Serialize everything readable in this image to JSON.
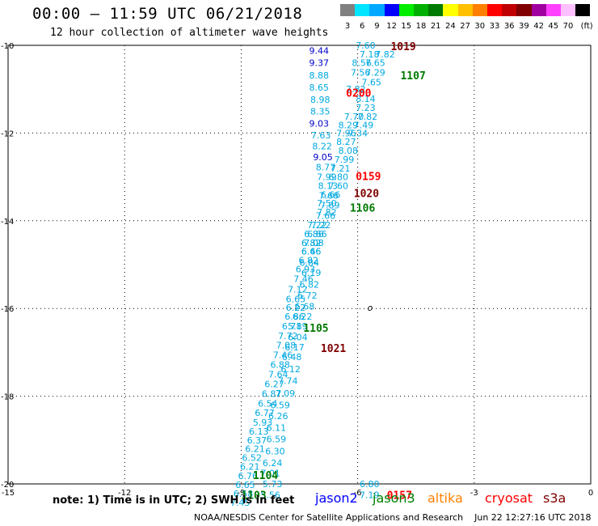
{
  "header": {
    "title": "00:00 – 11:59 UTC 06/21/2018",
    "subtitle": "12 hour collection of altimeter wave heights"
  },
  "color_scale": {
    "unit_label": "(ft)",
    "items": [
      {
        "label": "3",
        "color": "#808080"
      },
      {
        "label": "6",
        "color": "#00e5ff"
      },
      {
        "label": "9",
        "color": "#00a8ff"
      },
      {
        "label": "12",
        "color": "#0000ff"
      },
      {
        "label": "15",
        "color": "#00ee00"
      },
      {
        "label": "18",
        "color": "#00b000"
      },
      {
        "label": "21",
        "color": "#007a00"
      },
      {
        "label": "24",
        "color": "#ffff00"
      },
      {
        "label": "27",
        "color": "#ffc000"
      },
      {
        "label": "30",
        "color": "#ff8000"
      },
      {
        "label": "33",
        "color": "#ff0000"
      },
      {
        "label": "36",
        "color": "#c00000"
      },
      {
        "label": "39",
        "color": "#800000"
      },
      {
        "label": "42",
        "color": "#a000a0"
      },
      {
        "label": "45",
        "color": "#ff40ff"
      },
      {
        "label": "70",
        "color": "#ffc0ff"
      },
      {
        "label": "",
        "color": "#000000"
      }
    ]
  },
  "map": {
    "lon_range": [
      -15,
      0
    ],
    "lat_range": [
      -20,
      -10
    ],
    "x_ticks": [
      {
        "value": -15,
        "label": "-15"
      },
      {
        "value": -12,
        "label": "-12"
      },
      {
        "value": -9,
        "label": "-9"
      },
      {
        "value": -6,
        "label": "-6"
      },
      {
        "value": -3,
        "label": "-3"
      },
      {
        "value": 0,
        "label": "0"
      }
    ],
    "y_ticks": [
      {
        "value": -10,
        "label": "-10"
      },
      {
        "value": -12,
        "label": "-12"
      },
      {
        "value": -14,
        "label": "-14"
      },
      {
        "value": -16,
        "label": "-16"
      },
      {
        "value": -18,
        "label": "-18"
      },
      {
        "value": -20,
        "label": "-20"
      }
    ],
    "grid": "dotted",
    "track_left": [
      {
        "lat": -10.12,
        "lon": -7.25,
        "v": "9.44",
        "c": "#0000c8"
      },
      {
        "lat": -10.4,
        "lon": -7.25,
        "v": "9.37",
        "c": "#0000c8"
      },
      {
        "lat": -10.68,
        "lon": -7.25,
        "v": "8.88",
        "c": "#00a8e0"
      },
      {
        "lat": -10.96,
        "lon": -7.25,
        "v": "8.65",
        "c": "#00a8e0"
      },
      {
        "lat": -11.24,
        "lon": -7.22,
        "v": "8.98",
        "c": "#00a8e0"
      },
      {
        "lat": -11.5,
        "lon": -7.22,
        "v": "8.35",
        "c": "#00a8e0"
      },
      {
        "lat": -11.78,
        "lon": -7.25,
        "v": "9.03",
        "c": "#0000c8"
      },
      {
        "lat": -12.05,
        "lon": -7.2,
        "v": "7.63",
        "c": "#00a8e0"
      },
      {
        "lat": -12.3,
        "lon": -7.17,
        "v": "8.22",
        "c": "#00a8e0"
      },
      {
        "lat": -12.55,
        "lon": -7.15,
        "v": "9.05",
        "c": "#0000c8"
      },
      {
        "lat": -12.78,
        "lon": -7.08,
        "v": "8.77",
        "c": "#00a8e0"
      },
      {
        "lat": -13.0,
        "lon": -7.05,
        "v": "7.99",
        "c": "#00a8e0"
      },
      {
        "lat": -13.2,
        "lon": -7.02,
        "v": "8.13",
        "c": "#00a8e0"
      },
      {
        "lat": -13.42,
        "lon": -7.0,
        "v": "7.66",
        "c": "#00a8e0"
      },
      {
        "lat": -13.64,
        "lon": -6.97,
        "v": "7.89",
        "c": "#00a8e0"
      },
      {
        "lat": -13.88,
        "lon": -7.08,
        "v": "7.66",
        "c": "#00a8e0"
      },
      {
        "lat": -14.1,
        "lon": -7.2,
        "v": "7.22",
        "c": "#00a8e0"
      },
      {
        "lat": -14.3,
        "lon": -7.3,
        "v": "6.66",
        "c": "#00a8e0"
      },
      {
        "lat": -14.5,
        "lon": -7.38,
        "v": "7.08",
        "c": "#00a8e0"
      },
      {
        "lat": -14.7,
        "lon": -7.45,
        "v": "6.66",
        "c": "#00a8e0"
      },
      {
        "lat": -14.9,
        "lon": -7.52,
        "v": "6.82",
        "c": "#00a8e0"
      },
      {
        "lat": -15.1,
        "lon": -7.6,
        "v": "6.93",
        "c": "#00a8e0"
      },
      {
        "lat": -15.32,
        "lon": -7.65,
        "v": "7.46",
        "c": "#00a8e0"
      },
      {
        "lat": -15.56,
        "lon": -7.8,
        "v": "7.12",
        "c": "#00a8e0"
      },
      {
        "lat": -15.78,
        "lon": -7.85,
        "v": "6.65",
        "c": "#00a8e0"
      },
      {
        "lat": -15.98,
        "lon": -7.85,
        "v": "6.22",
        "c": "#00a8e0"
      },
      {
        "lat": -16.18,
        "lon": -7.88,
        "v": "6.86",
        "c": "#00a8e0"
      },
      {
        "lat": -16.4,
        "lon": -7.95,
        "v": "6.71",
        "c": "#00a8e0"
      },
      {
        "lat": -16.62,
        "lon": -8.05,
        "v": "7.72",
        "c": "#00a8e0"
      },
      {
        "lat": -16.84,
        "lon": -8.1,
        "v": "7.08",
        "c": "#00a8e0"
      },
      {
        "lat": -17.06,
        "lon": -8.18,
        "v": "7.46",
        "c": "#00a8e0"
      },
      {
        "lat": -17.28,
        "lon": -8.25,
        "v": "6.88",
        "c": "#00a8e0"
      },
      {
        "lat": -17.5,
        "lon": -8.3,
        "v": "7.64",
        "c": "#00a8e0"
      },
      {
        "lat": -17.72,
        "lon": -8.4,
        "v": "6.27",
        "c": "#00a8e0"
      },
      {
        "lat": -17.94,
        "lon": -8.47,
        "v": "6.87",
        "c": "#00a8e0"
      },
      {
        "lat": -18.16,
        "lon": -8.57,
        "v": "6.54",
        "c": "#00a8e0"
      },
      {
        "lat": -18.38,
        "lon": -8.65,
        "v": "6.77",
        "c": "#00a8e0"
      },
      {
        "lat": -18.6,
        "lon": -8.7,
        "v": "5.93",
        "c": "#00a8e0"
      },
      {
        "lat": -18.8,
        "lon": -8.8,
        "v": "6.13",
        "c": "#00a8e0"
      },
      {
        "lat": -19.0,
        "lon": -8.85,
        "v": "6.37",
        "c": "#00a8e0"
      },
      {
        "lat": -19.2,
        "lon": -8.9,
        "v": "6.21",
        "c": "#00a8e0"
      },
      {
        "lat": -19.4,
        "lon": -8.98,
        "v": "6.52",
        "c": "#00a8e0"
      },
      {
        "lat": -19.6,
        "lon": -9.03,
        "v": "6.21",
        "c": "#00a8e0"
      },
      {
        "lat": -19.82,
        "lon": -9.08,
        "v": "6.76",
        "c": "#00a8e0"
      },
      {
        "lat": -20.02,
        "lon": -9.15,
        "v": "6.65",
        "c": "#00a8e0"
      },
      {
        "lat": -20.22,
        "lon": -9.2,
        "v": "6.58",
        "c": "#00a8e0"
      },
      {
        "lat": -20.42,
        "lon": -9.28,
        "v": "7.45",
        "c": "#00a8e0"
      }
    ],
    "track_right": [
      {
        "lat": -10.0,
        "lon": -6.05,
        "v": "7.60",
        "c": "#00a8e0"
      },
      {
        "lat": -10.2,
        "lon": -5.95,
        "v": "7.18",
        "c": "#00a8e0"
      },
      {
        "lat": -10.2,
        "lon": -5.55,
        "v": "7.82",
        "c": "#00a8e0"
      },
      {
        "lat": -10.4,
        "lon": -6.15,
        "v": "8.56",
        "c": "#00a8e0"
      },
      {
        "lat": -10.4,
        "lon": -5.8,
        "v": "7.65",
        "c": "#00a8e0"
      },
      {
        "lat": -10.62,
        "lon": -6.18,
        "v": "7.56",
        "c": "#00a8e0"
      },
      {
        "lat": -10.62,
        "lon": -5.8,
        "v": "7.29",
        "c": "#00a8e0"
      },
      {
        "lat": -10.84,
        "lon": -5.9,
        "v": "7.65",
        "c": "#00a8e0"
      },
      {
        "lat": -11.0,
        "lon": -6.3,
        "v": "7.82",
        "c": "#00a8e0"
      },
      {
        "lat": -11.22,
        "lon": -6.05,
        "v": "8.14",
        "c": "#00a8e0"
      },
      {
        "lat": -11.42,
        "lon": -6.05,
        "v": "7.23",
        "c": "#00a8e0"
      },
      {
        "lat": -11.62,
        "lon": -6.35,
        "v": "7.70",
        "c": "#00a8e0"
      },
      {
        "lat": -11.62,
        "lon": -6.0,
        "v": "7.82",
        "c": "#00a8e0"
      },
      {
        "lat": -11.82,
        "lon": -6.5,
        "v": "8.29",
        "c": "#00a8e0"
      },
      {
        "lat": -11.82,
        "lon": -6.1,
        "v": "7.49",
        "c": "#00a8e0"
      },
      {
        "lat": -12.0,
        "lon": -6.55,
        "v": "7.96",
        "c": "#00a8e0"
      },
      {
        "lat": -12.0,
        "lon": -6.25,
        "v": "7.34",
        "c": "#00a8e0"
      },
      {
        "lat": -12.2,
        "lon": -6.55,
        "v": "8.27",
        "c": "#00a8e0"
      },
      {
        "lat": -12.4,
        "lon": -6.5,
        "v": "8.08",
        "c": "#00a8e0"
      },
      {
        "lat": -12.6,
        "lon": -6.6,
        "v": "7.99",
        "c": "#00a8e0"
      },
      {
        "lat": -12.8,
        "lon": -6.7,
        "v": "7.21",
        "c": "#00a8e0"
      },
      {
        "lat": -13.0,
        "lon": -6.75,
        "v": "6.80",
        "c": "#00a8e0"
      },
      {
        "lat": -13.2,
        "lon": -6.75,
        "v": "7.60",
        "c": "#00a8e0"
      },
      {
        "lat": -13.4,
        "lon": -6.95,
        "v": "6.66",
        "c": "#00a8e0"
      },
      {
        "lat": -13.6,
        "lon": -7.05,
        "v": "7.50",
        "c": "#00a8e0"
      },
      {
        "lat": -13.8,
        "lon": -7.05,
        "v": "7.82",
        "c": "#00a8e0"
      },
      {
        "lat": -14.1,
        "lon": -7.3,
        "v": "7.22",
        "c": "#00a8e0"
      },
      {
        "lat": -14.3,
        "lon": -7.38,
        "v": "6.86",
        "c": "#00a8e0"
      },
      {
        "lat": -14.5,
        "lon": -7.45,
        "v": "6.82",
        "c": "#00a8e0"
      },
      {
        "lat": -14.7,
        "lon": -7.45,
        "v": "6.46",
        "c": "#00a8e0"
      },
      {
        "lat": -14.95,
        "lon": -7.5,
        "v": "6.84",
        "c": "#00a8e0"
      },
      {
        "lat": -15.18,
        "lon": -7.45,
        "v": "6.19",
        "c": "#00a8e0"
      },
      {
        "lat": -15.45,
        "lon": -7.5,
        "v": "6.82",
        "c": "#00a8e0"
      },
      {
        "lat": -15.7,
        "lon": -7.55,
        "v": "6.72",
        "c": "#00a8e0"
      },
      {
        "lat": -15.95,
        "lon": -7.62,
        "v": "6.68",
        "c": "#00a8e0"
      },
      {
        "lat": -16.18,
        "lon": -7.68,
        "v": "6.22",
        "c": "#00a8e0"
      },
      {
        "lat": -16.4,
        "lon": -7.8,
        "v": "5.89",
        "c": "#00a8e0"
      },
      {
        "lat": -16.65,
        "lon": -7.8,
        "v": "6.04",
        "c": "#00a8e0"
      },
      {
        "lat": -16.88,
        "lon": -7.88,
        "v": "6.17",
        "c": "#00a8e0"
      },
      {
        "lat": -17.1,
        "lon": -7.95,
        "v": "6.48",
        "c": "#00a8e0"
      },
      {
        "lat": -17.38,
        "lon": -7.98,
        "v": "6.12",
        "c": "#00a8e0"
      },
      {
        "lat": -17.65,
        "lon": -8.05,
        "v": "7.74",
        "c": "#00a8e0"
      },
      {
        "lat": -17.93,
        "lon": -8.12,
        "v": "7.09",
        "c": "#00a8e0"
      },
      {
        "lat": -18.2,
        "lon": -8.25,
        "v": "6.59",
        "c": "#00a8e0"
      },
      {
        "lat": -18.45,
        "lon": -8.3,
        "v": "6.26",
        "c": "#00a8e0"
      },
      {
        "lat": -18.72,
        "lon": -8.35,
        "v": "6.11",
        "c": "#00a8e0"
      },
      {
        "lat": -18.98,
        "lon": -8.35,
        "v": "6.59",
        "c": "#00a8e0"
      },
      {
        "lat": -19.25,
        "lon": -8.38,
        "v": "6.30",
        "c": "#00a8e0"
      },
      {
        "lat": -19.52,
        "lon": -8.45,
        "v": "6.24",
        "c": "#00a8e0"
      },
      {
        "lat": -19.75,
        "lon": -8.5,
        "v": "7.01",
        "c": "#00a8e0"
      },
      {
        "lat": -20.0,
        "lon": -8.45,
        "v": "5.73",
        "c": "#00a8e0"
      },
      {
        "lat": -20.25,
        "lon": -8.5,
        "v": "5.56",
        "c": "#00a8e0"
      }
    ],
    "track_east": [
      {
        "lat": -20.0,
        "lon": -5.95,
        "v": "6.80",
        "c": "#00a8e0"
      },
      {
        "lat": -20.25,
        "lon": -5.95,
        "v": "7.19",
        "c": "#00a8e0"
      }
    ],
    "time_labels": [
      {
        "lat": -10.02,
        "lon": -5.15,
        "v": "1019",
        "c": "#800000"
      },
      {
        "lat": -10.68,
        "lon": -4.9,
        "v": "1107",
        "c": "#007a00"
      },
      {
        "lat": -11.08,
        "lon": -6.3,
        "v": "0200",
        "c": "#ff0000"
      },
      {
        "lat": -12.98,
        "lon": -6.05,
        "v": "0159",
        "c": "#ff0000"
      },
      {
        "lat": -13.37,
        "lon": -6.1,
        "v": "1020",
        "c": "#800000"
      },
      {
        "lat": -13.7,
        "lon": -6.2,
        "v": "1106",
        "c": "#007a00"
      },
      {
        "lat": -16.44,
        "lon": -7.4,
        "v": "1105",
        "c": "#007a00"
      },
      {
        "lat": -16.9,
        "lon": -6.95,
        "v": "1021",
        "c": "#800000"
      },
      {
        "lat": -19.8,
        "lon": -8.7,
        "v": "1104",
        "c": "#007a00"
      },
      {
        "lat": -20.25,
        "lon": -9.0,
        "v": "1103",
        "c": "#007a00"
      },
      {
        "lat": -20.25,
        "lon": -5.25,
        "v": "0157",
        "c": "#ff0000"
      }
    ],
    "arrow_glyph": {
      "lat": -16.0,
      "lon": -5.75,
      "v": "o"
    }
  },
  "footer": {
    "note": "note: 1) Time is in UTC; 2) SWH is in feet",
    "legend": [
      {
        "label": "jason2",
        "color": "#0000ff"
      },
      {
        "label": "jason3",
        "color": "#008000"
      },
      {
        "label": "altika",
        "color": "#ff8000"
      },
      {
        "label": "cryosat",
        "color": "#ff0000"
      },
      {
        "label": "s3a",
        "color": "#800000"
      }
    ],
    "credit": "NOAA/NESDIS Center for Satellite Applications and Research    Jun 22 12:27:16 UTC 2018"
  }
}
